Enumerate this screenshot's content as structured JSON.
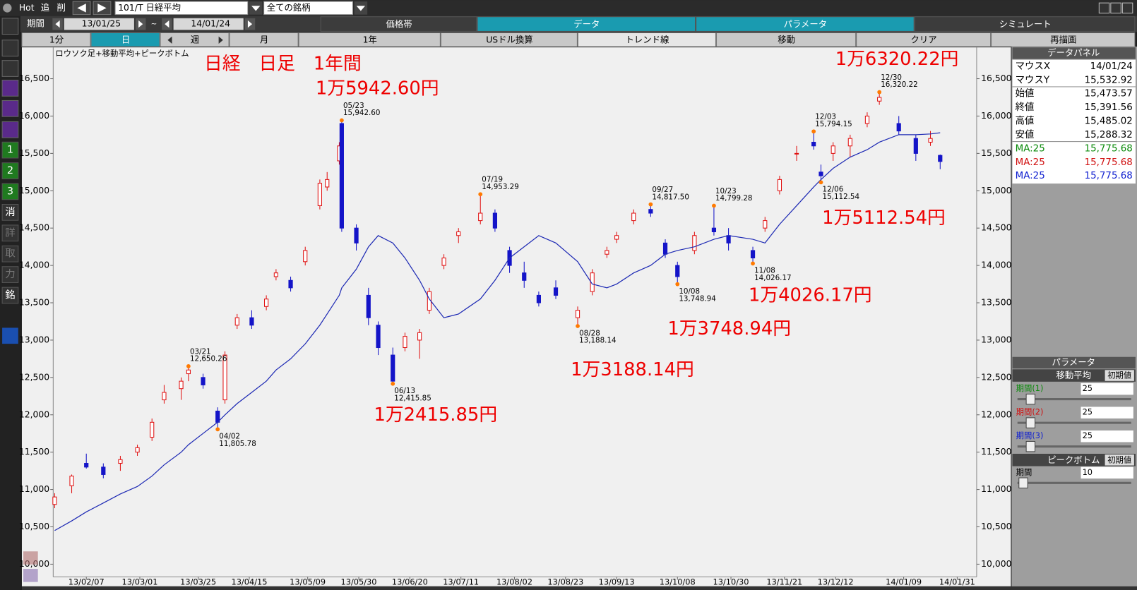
{
  "toolbar": {
    "hot": "Hot",
    "add": "追",
    "del": "削",
    "symbol": "101/T 日経平均",
    "universe": "全ての銘柄"
  },
  "period": {
    "label": "期間",
    "from": "13/01/25",
    "sep": "~",
    "to": "14/01/24"
  },
  "tabs": [
    "価格帯",
    "データ",
    "パラメータ",
    "シミュレート"
  ],
  "buttons": [
    "1分",
    "日",
    "週",
    "月",
    "1年",
    "USドル換算",
    "トレンド線",
    "移動",
    "クリア",
    "再描画"
  ],
  "side_tools": [
    "1",
    "2",
    "3",
    "消",
    "詳",
    "取",
    "力",
    "銘"
  ],
  "data_panel": {
    "title": "データパネル",
    "rows": [
      [
        "マウスX",
        "14/01/24"
      ],
      [
        "マウスY",
        "15,532.92"
      ],
      [
        "始値",
        "15,473.57"
      ],
      [
        "終値",
        "15,391.56"
      ],
      [
        "高値",
        "15,485.02"
      ],
      [
        "安値",
        "15,288.32"
      ],
      [
        "MA:25",
        "15,775.68"
      ],
      [
        "MA:25",
        "15,775.68"
      ],
      [
        "MA:25",
        "15,775.68"
      ]
    ]
  },
  "parameter_panel": {
    "title": "パラメータ",
    "ma_section": "移動平均",
    "reset": "初期値",
    "ma_rows": [
      [
        "期間(1)",
        "25"
      ],
      [
        "期間(2)",
        "25"
      ],
      [
        "期間(3)",
        "25"
      ]
    ],
    "peak_section": "ピークボトム",
    "peak_reset": "初期値",
    "peak_rows": [
      [
        "期間",
        "10"
      ]
    ]
  },
  "chart_data": {
    "type": "candlestick",
    "subtitle": "ロウソク足+移動平均+ピークボトム",
    "title": "日経　日足　1年間",
    "x": [
      "13/01/25",
      "13/02/01",
      "13/02/07",
      "13/02/14",
      "13/02/21",
      "13/02/28",
      "13/03/06",
      "13/03/11",
      "13/03/18",
      "13/03/21",
      "13/03/27",
      "13/04/02",
      "13/04/05",
      "13/04/10",
      "13/04/16",
      "13/04/22",
      "13/04/26",
      "13/05/02",
      "13/05/08",
      "13/05/14",
      "13/05/17",
      "13/05/22",
      "13/05/23",
      "13/05/29",
      "13/06/03",
      "13/06/07",
      "13/06/13",
      "13/06/18",
      "13/06/24",
      "13/06/28",
      "13/07/04",
      "13/07/10",
      "13/07/19",
      "13/07/25",
      "13/07/31",
      "13/08/06",
      "13/08/12",
      "13/08/19",
      "13/08/28",
      "13/09/03",
      "13/09/09",
      "13/09/13",
      "13/09/20",
      "13/09/27",
      "13/10/03",
      "13/10/08",
      "13/10/15",
      "13/10/23",
      "13/10/29",
      "13/11/08",
      "13/11/13",
      "13/11/19",
      "13/11/26",
      "13/12/03",
      "13/12/06",
      "13/12/11",
      "13/12/18",
      "13/12/25",
      "13/12/30",
      "14/01/07",
      "14/01/14",
      "14/01/20",
      "14/01/24"
    ],
    "open": [
      10800,
      11050,
      11350,
      11300,
      11350,
      11500,
      11700,
      12200,
      12350,
      12550,
      12500,
      12050,
      12200,
      13200,
      13300,
      13450,
      13850,
      13800,
      14050,
      14800,
      15050,
      15400,
      15900,
      14500,
      13600,
      13200,
      12800,
      12900,
      13000,
      13400,
      14000,
      14400,
      14600,
      14700,
      14200,
      13900,
      13600,
      13700,
      13300,
      13650,
      14150,
      14350,
      14600,
      14750,
      14300,
      14000,
      14200,
      14500,
      14400,
      14200,
      14500,
      15000,
      15500,
      15650,
      15250,
      15500,
      15600,
      15900,
      16200,
      15900,
      15700,
      15650,
      15473.57
    ],
    "high": [
      10950,
      11200,
      11480,
      11350,
      11450,
      11600,
      11950,
      12400,
      12500,
      12650.26,
      12550,
      12100,
      12850,
      13350,
      13400,
      13600,
      13950,
      13850,
      14250,
      15150,
      15250,
      15650,
      15942.6,
      14550,
      13700,
      13250,
      12900,
      13100,
      13150,
      13700,
      14150,
      14500,
      14953.29,
      14750,
      14250,
      14050,
      13650,
      13800,
      13450,
      13950,
      14250,
      14450,
      14750,
      14817.5,
      14350,
      14050,
      14450,
      14799.28,
      14500,
      14250,
      14650,
      15200,
      15600,
      15794.15,
      15350,
      15650,
      15750,
      16050,
      16320.22,
      16000,
      15750,
      15800,
      15485.02
    ],
    "low": [
      10750,
      10950,
      11280,
      11150,
      11250,
      11450,
      11650,
      12150,
      12200,
      12450,
      12350,
      11805.78,
      12150,
      13150,
      13150,
      13400,
      13800,
      13650,
      14000,
      14750,
      15000,
      15350,
      14450,
      14200,
      13200,
      12800,
      12415.85,
      12850,
      12750,
      13350,
      13950,
      14300,
      14550,
      14450,
      13900,
      13700,
      13450,
      13550,
      13188.14,
      13600,
      14100,
      14300,
      14550,
      14650,
      14100,
      13748.94,
      14150,
      14400,
      14200,
      14026.17,
      14450,
      14950,
      15400,
      15550,
      15112.54,
      15400,
      15450,
      15850,
      16150,
      15750,
      15400,
      15600,
      15288.32
    ],
    "close": [
      10900,
      11180,
      11300,
      11200,
      11400,
      11560,
      11900,
      12300,
      12450,
      12600,
      12400,
      11900,
      12800,
      13300,
      13200,
      13550,
      13900,
      13700,
      14200,
      15100,
      15150,
      15600,
      14500,
      14300,
      13300,
      12900,
      12450,
      13050,
      13100,
      13650,
      14100,
      14450,
      14700,
      14500,
      14000,
      13800,
      13500,
      13600,
      13400,
      13900,
      14200,
      14400,
      14700,
      14700,
      14150,
      13850,
      14400,
      14450,
      14300,
      14100,
      14600,
      15150,
      15500,
      15600,
      15200,
      15600,
      15700,
      16000,
      16250,
      15800,
      15500,
      15700,
      15391.56
    ],
    "ma_values": [
      10450,
      10580,
      10700,
      10820,
      10940,
      11040,
      11180,
      11330,
      11500,
      11600,
      11750,
      11900,
      12000,
      12150,
      12300,
      12450,
      12600,
      12750,
      12950,
      13200,
      13350,
      13600,
      13700,
      13950,
      14250,
      14400,
      14300,
      14100,
      13800,
      13550,
      13300,
      13350,
      13550,
      13800,
      14100,
      14250,
      14400,
      14300,
      14050,
      13750,
      13700,
      13750,
      13900,
      14000,
      14150,
      14200,
      14250,
      14350,
      14400,
      14350,
      14300,
      14550,
      14800,
      15050,
      15150,
      15300,
      15450,
      15550,
      15650,
      15750,
      15750,
      15760,
      15775.68
    ],
    "up_color": "#e01010",
    "down_color": "#1414c8",
    "ma_color": "#1e2ab4",
    "peak_color": "#ff7a00",
    "ylim": [
      9830,
      16910
    ],
    "yticks": [
      {
        "value": 10000,
        "label": "10,000"
      },
      {
        "value": 10500,
        "label": "10,500"
      },
      {
        "value": 11000,
        "label": "11,000"
      },
      {
        "value": 11500,
        "label": "11,500"
      },
      {
        "value": 12000,
        "label": "12,000"
      },
      {
        "value": 12500,
        "label": "12,500"
      },
      {
        "value": 13000,
        "label": "13,000"
      },
      {
        "value": 13500,
        "label": "13,500"
      },
      {
        "value": 14000,
        "label": "14,000"
      },
      {
        "value": 14500,
        "label": "14,500"
      },
      {
        "value": 15000,
        "label": "15,000"
      },
      {
        "value": 15500,
        "label": "15,500"
      },
      {
        "value": 16000,
        "label": "16,000"
      },
      {
        "value": 16500,
        "label": "16,500"
      }
    ],
    "xlim": [
      "13/01/22",
      "14/02/08"
    ],
    "xticks": [
      "13/02/07",
      "13/03/01",
      "13/03/25",
      "13/04/15",
      "13/05/09",
      "13/05/30",
      "13/06/20",
      "13/07/11",
      "13/08/02",
      "13/08/23",
      "13/09/13",
      "13/10/08",
      "13/10/30",
      "13/11/21",
      "13/12/12",
      "14/01/09",
      "14/01/31"
    ],
    "peaks": [
      {
        "date": "03/21",
        "value": 12650.26,
        "label": "12,650.26"
      },
      {
        "date": "04/02",
        "value": 11805.78,
        "label": "11,805.78"
      },
      {
        "date": "05/23",
        "value": 15942.6,
        "label": "15,942.60"
      },
      {
        "date": "06/13",
        "value": 12415.85,
        "label": "12,415.85"
      },
      {
        "date": "07/19",
        "value": 14953.29,
        "label": "14,953.29"
      },
      {
        "date": "08/28",
        "value": 13188.14,
        "label": "13,188.14"
      },
      {
        "date": "09/27",
        "value": 14817.5,
        "label": "14,817.50"
      },
      {
        "date": "10/08",
        "value": 13748.94,
        "label": "13,748.94"
      },
      {
        "date": "10/23",
        "value": 14799.28,
        "label": "14,799.28"
      },
      {
        "date": "11/08",
        "value": 14026.17,
        "label": "14,026.17"
      },
      {
        "date": "12/03",
        "value": 15794.15,
        "label": "15,794.15"
      },
      {
        "date": "12/06",
        "value": 15112.54,
        "label": "15,112.54"
      },
      {
        "date": "12/30",
        "value": 16320.22,
        "label": "16,320.22"
      }
    ],
    "annotations": [
      "1万5942.60円",
      "1万2415.85円",
      "1万3188.14円",
      "1万3748.94円",
      "1万4026.17円",
      "1万5112.54円",
      "1万6320.22円"
    ]
  }
}
